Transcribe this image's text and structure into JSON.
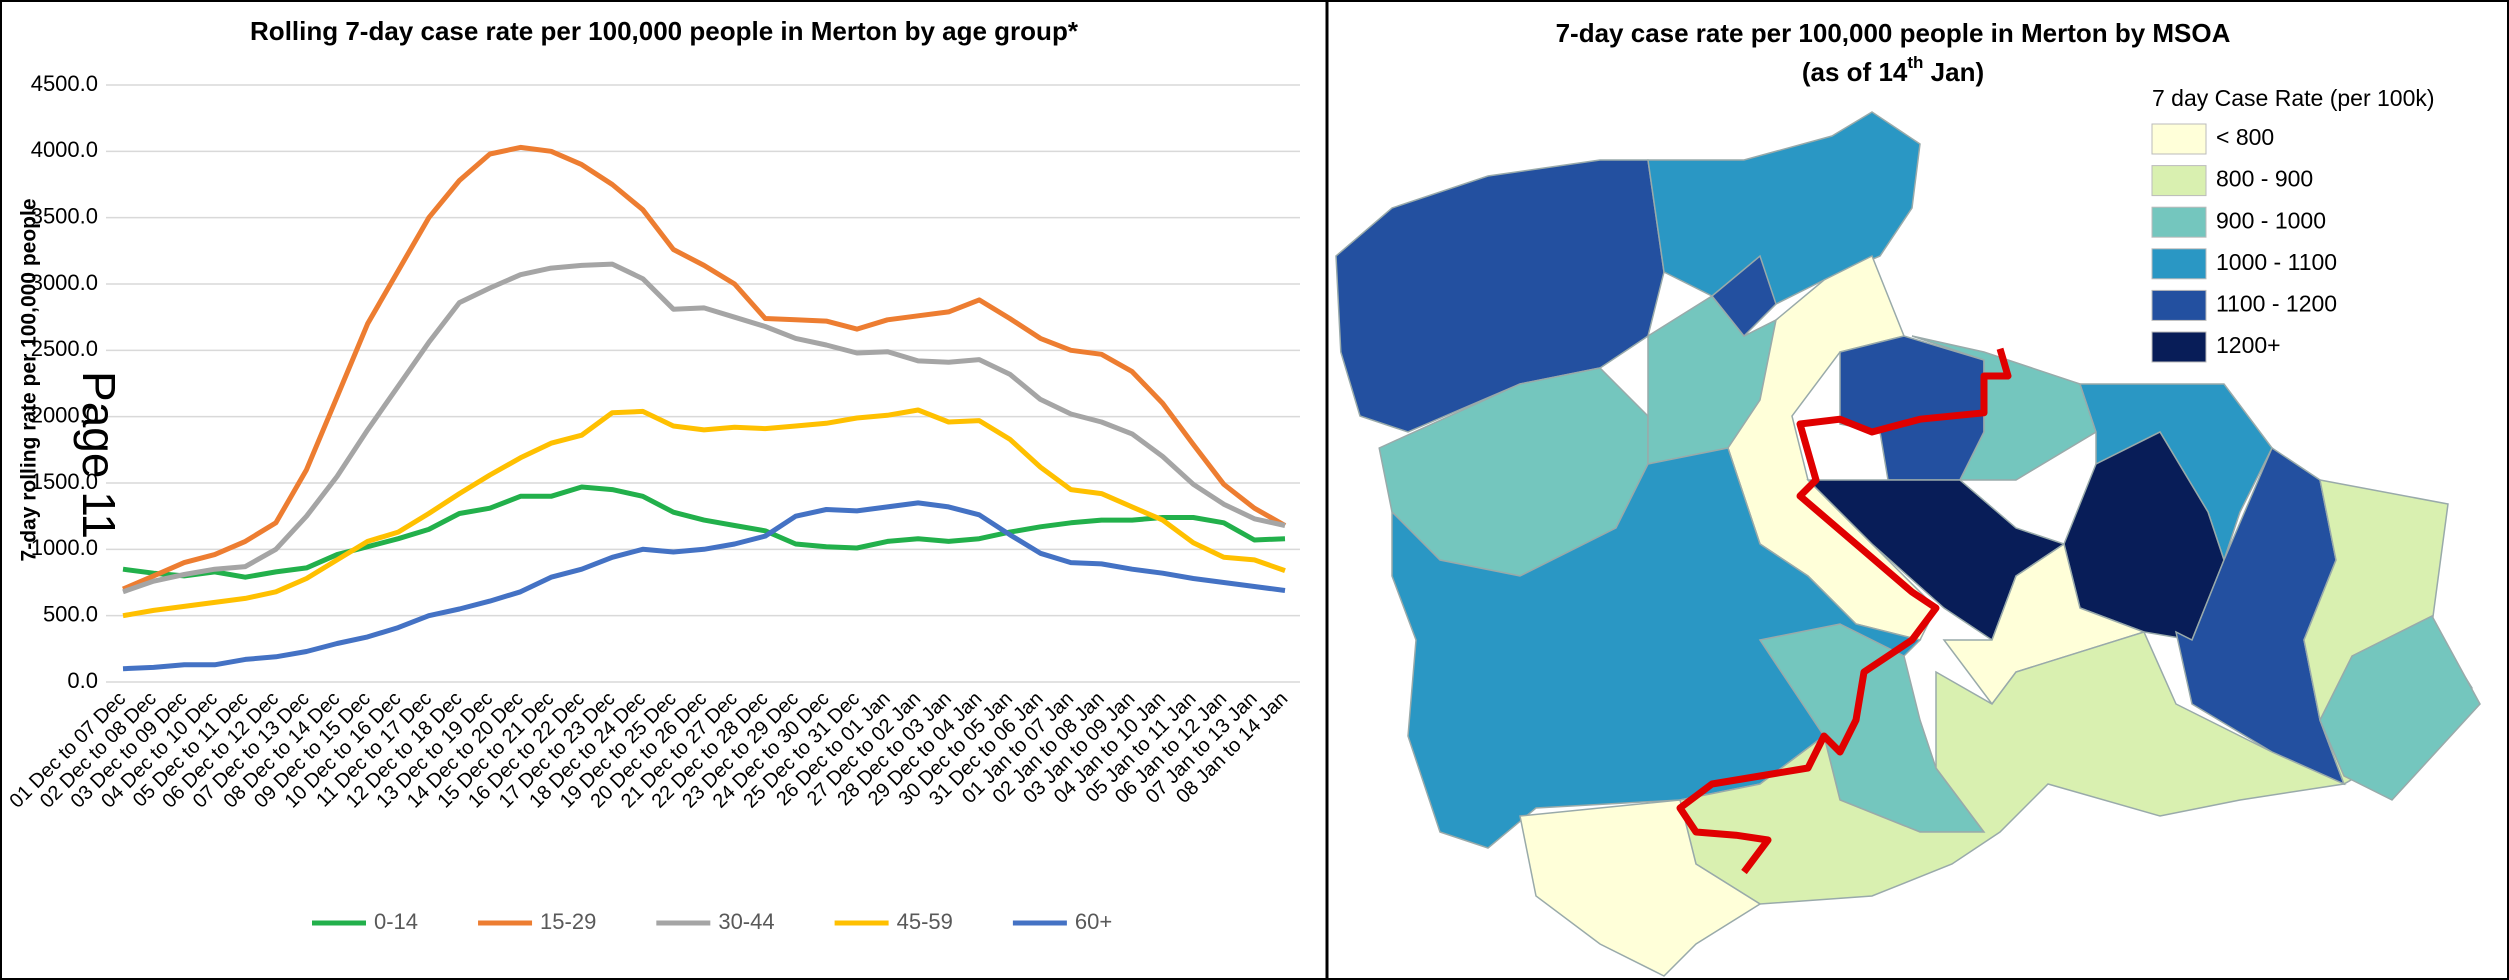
{
  "chart_data": {
    "type": "line",
    "title": "Rolling 7-day case rate per 100,000 people in Merton by age group*",
    "y_label": "7-day rolling rate per 100,000 people",
    "categories": [
      "01 Dec to 07 Dec",
      "02 Dec to 08 Dec",
      "03 Dec to 09 Dec",
      "04 Dec to 10 Dec",
      "05 Dec to 11 Dec",
      "06 Dec to 12 Dec",
      "07 Dec to 13 Dec",
      "08 Dec to 14 Dec",
      "09 Dec to 15 Dec",
      "10 Dec to 16 Dec",
      "11 Dec to 17 Dec",
      "12 Dec to 18 Dec",
      "13 Dec to 19 Dec",
      "14 Dec to 20 Dec",
      "15 Dec to 21 Dec",
      "16 Dec to 22 Dec",
      "17 Dec to 23 Dec",
      "18 Dec to 24 Dec",
      "19 Dec to 25 Dec",
      "20 Dec to 26 Dec",
      "21 Dec to 27 Dec",
      "22 Dec to 28 Dec",
      "23 Dec to 29 Dec",
      "24 Dec to 30 Dec",
      "25 Dec to 31 Dec",
      "26 Dec to 01 Jan",
      "27 Dec to 02 Jan",
      "28 Dec to 03 Jan",
      "29 Dec to 04 Jan",
      "30 Dec to 05 Jan",
      "31 Dec to 06 Jan",
      "01 Jan to 07 Jan",
      "02 Jan to 08 Jan",
      "03 Jan to 09 Jan",
      "04 Jan to 10 Jan",
      "05 Jan to 11 Jan",
      "06 Jan to 12 Jan",
      "07 Jan to 13 Jan",
      "08 Jan to 14 Jan"
    ],
    "series": [
      {
        "name": "0-14",
        "color": "#22b04b",
        "values": [
          850,
          820,
          800,
          830,
          790,
          830,
          860,
          960,
          1020,
          1080,
          1150,
          1270,
          1310,
          1400,
          1400,
          1470,
          1450,
          1400,
          1280,
          1220,
          1180,
          1140,
          1040,
          1020,
          1010,
          1060,
          1080,
          1060,
          1080,
          1130,
          1170,
          1200,
          1220,
          1220,
          1240,
          1240,
          1200,
          1070,
          1080
        ]
      },
      {
        "name": "15-29",
        "color": "#ed7d31",
        "values": [
          700,
          800,
          900,
          960,
          1060,
          1200,
          1600,
          2150,
          2700,
          3100,
          3500,
          3780,
          3980,
          4030,
          4000,
          3900,
          3750,
          3560,
          3260,
          3140,
          3000,
          2740,
          2730,
          2720,
          2660,
          2730,
          2760,
          2790,
          2880,
          2740,
          2590,
          2500,
          2470,
          2340,
          2100,
          1790,
          1490,
          1310,
          1180
        ]
      },
      {
        "name": "30-44",
        "color": "#a5a5a5",
        "values": [
          680,
          760,
          810,
          850,
          870,
          1000,
          1250,
          1550,
          1900,
          2230,
          2560,
          2860,
          2970,
          3070,
          3120,
          3140,
          3150,
          3040,
          2810,
          2820,
          2750,
          2680,
          2590,
          2540,
          2480,
          2490,
          2420,
          2410,
          2430,
          2320,
          2130,
          2020,
          1960,
          1870,
          1700,
          1490,
          1340,
          1230,
          1180
        ]
      },
      {
        "name": "45-59",
        "color": "#ffc000",
        "values": [
          500,
          540,
          570,
          600,
          630,
          680,
          780,
          920,
          1060,
          1130,
          1270,
          1420,
          1560,
          1690,
          1800,
          1860,
          2030,
          2040,
          1930,
          1900,
          1920,
          1910,
          1930,
          1950,
          1990,
          2010,
          2050,
          1960,
          1970,
          1830,
          1620,
          1450,
          1420,
          1320,
          1220,
          1050,
          940,
          920,
          840
        ]
      },
      {
        "name": "60+",
        "color": "#4472c4",
        "values": [
          100,
          110,
          130,
          130,
          170,
          190,
          230,
          290,
          340,
          410,
          500,
          550,
          610,
          680,
          790,
          850,
          940,
          1000,
          980,
          1000,
          1040,
          1100,
          1250,
          1300,
          1290,
          1320,
          1350,
          1320,
          1260,
          1110,
          970,
          900,
          890,
          850,
          820,
          780,
          750,
          720,
          690
        ]
      }
    ],
    "ylim": [
      0,
      4500
    ],
    "yticks": [
      {
        "value": 0,
        "label": "0.0"
      },
      {
        "value": 500,
        "label": "500.0"
      },
      {
        "value": 1000,
        "label": "1000.0"
      },
      {
        "value": 1500,
        "label": "1500.0"
      },
      {
        "value": 2000,
        "label": "2000.0"
      },
      {
        "value": 2500,
        "label": "2500.0"
      },
      {
        "value": 3000,
        "label": "3000.0"
      },
      {
        "value": 3500,
        "label": "3500.0"
      },
      {
        "value": 4000,
        "label": "4000.0"
      },
      {
        "value": 4500,
        "label": "4500.0"
      }
    ],
    "grid": true,
    "legend": "bottom"
  },
  "watermark": "Page 11",
  "map": {
    "title": "7-day case rate per 100,000 people in Merton by MSOA",
    "subtitle": [
      "(as of 14",
      "th",
      " Jan)"
    ],
    "legend_title": "7 day Case Rate (per 100k)",
    "legend": [
      {
        "label": "< 800",
        "color": "#ffffd9"
      },
      {
        "label": "800 - 900",
        "color": "#d9f0b0"
      },
      {
        "label": "900 - 1000",
        "color": "#74c6be"
      },
      {
        "label": "1000 - 1100",
        "color": "#2a97c4"
      },
      {
        "label": "1100 - 1200",
        "color": "#2350a0"
      },
      {
        "label": "1200+",
        "color": "#081d58"
      }
    ]
  }
}
